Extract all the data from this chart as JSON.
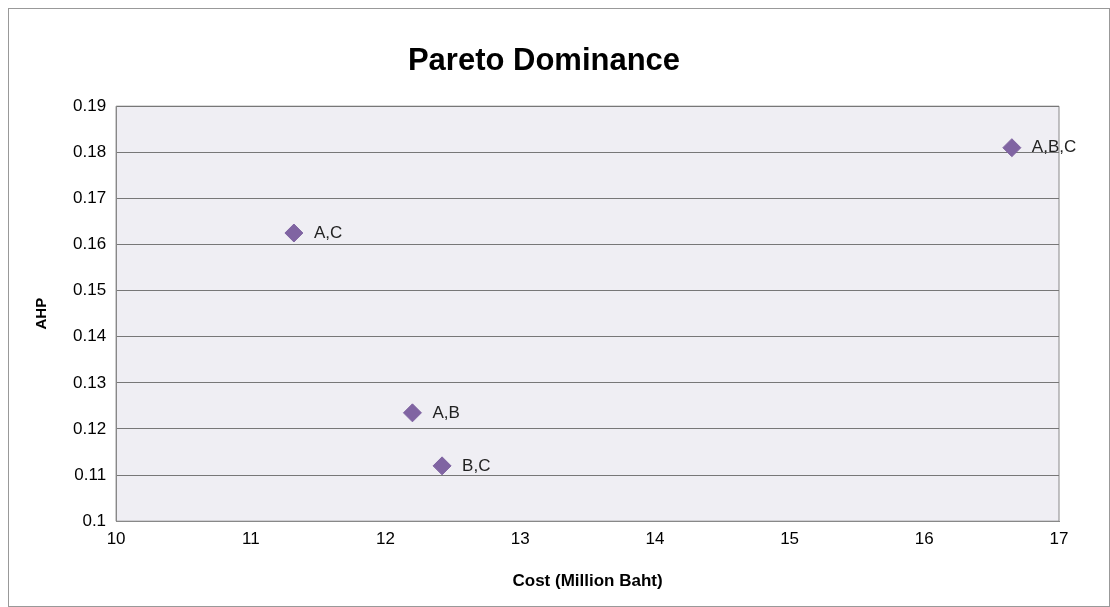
{
  "chart_data": {
    "type": "scatter",
    "title": "Pareto Dominance",
    "xlabel": "Cost (Million Baht)",
    "ylabel": "AHP",
    "x": [
      16.65,
      11.32,
      12.2,
      12.42
    ],
    "series": [
      {
        "color": "#8064a2",
        "values": [
          0.181,
          0.1625,
          0.1235,
          0.112
        ]
      }
    ],
    "annotations": [
      {
        "text": "A,B,C",
        "x": 16.65,
        "y": 0.181
      },
      {
        "text": "A,C",
        "x": 11.32,
        "y": 0.1625
      },
      {
        "text": "A,B",
        "x": 12.2,
        "y": 0.1235
      },
      {
        "text": "B,C",
        "x": 12.42,
        "y": 0.112
      }
    ],
    "xlim": [
      10,
      17
    ],
    "xticks": [
      10,
      11,
      12,
      13,
      14,
      15,
      16,
      17
    ],
    "ylim": [
      0.1,
      0.19
    ],
    "yticks": [
      0.1,
      0.11,
      0.12,
      0.13,
      0.14,
      0.15,
      0.16,
      0.17,
      0.18,
      0.19
    ],
    "grid": "y",
    "marker": "diamond",
    "legend": false
  }
}
